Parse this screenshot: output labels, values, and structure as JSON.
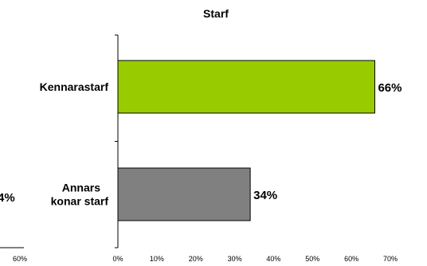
{
  "chart_data": {
    "type": "bar",
    "orientation": "horizontal",
    "title": "Starf",
    "xlabel": "",
    "ylabel": "",
    "xlim": [
      0,
      70
    ],
    "x_ticks": [
      "0%",
      "10%",
      "20%",
      "30%",
      "40%",
      "50%",
      "60%",
      "70%"
    ],
    "categories": [
      "Kennarastarf",
      "Annars konar starf"
    ],
    "values": [
      66,
      34
    ],
    "data_labels": [
      "66%",
      "34%"
    ],
    "colors": [
      "#99cc00",
      "#808080"
    ],
    "grid": false,
    "legend": "none"
  },
  "cropped_fragments": {
    "left_data_label": "4%",
    "bottom_left_tick": "60%"
  }
}
